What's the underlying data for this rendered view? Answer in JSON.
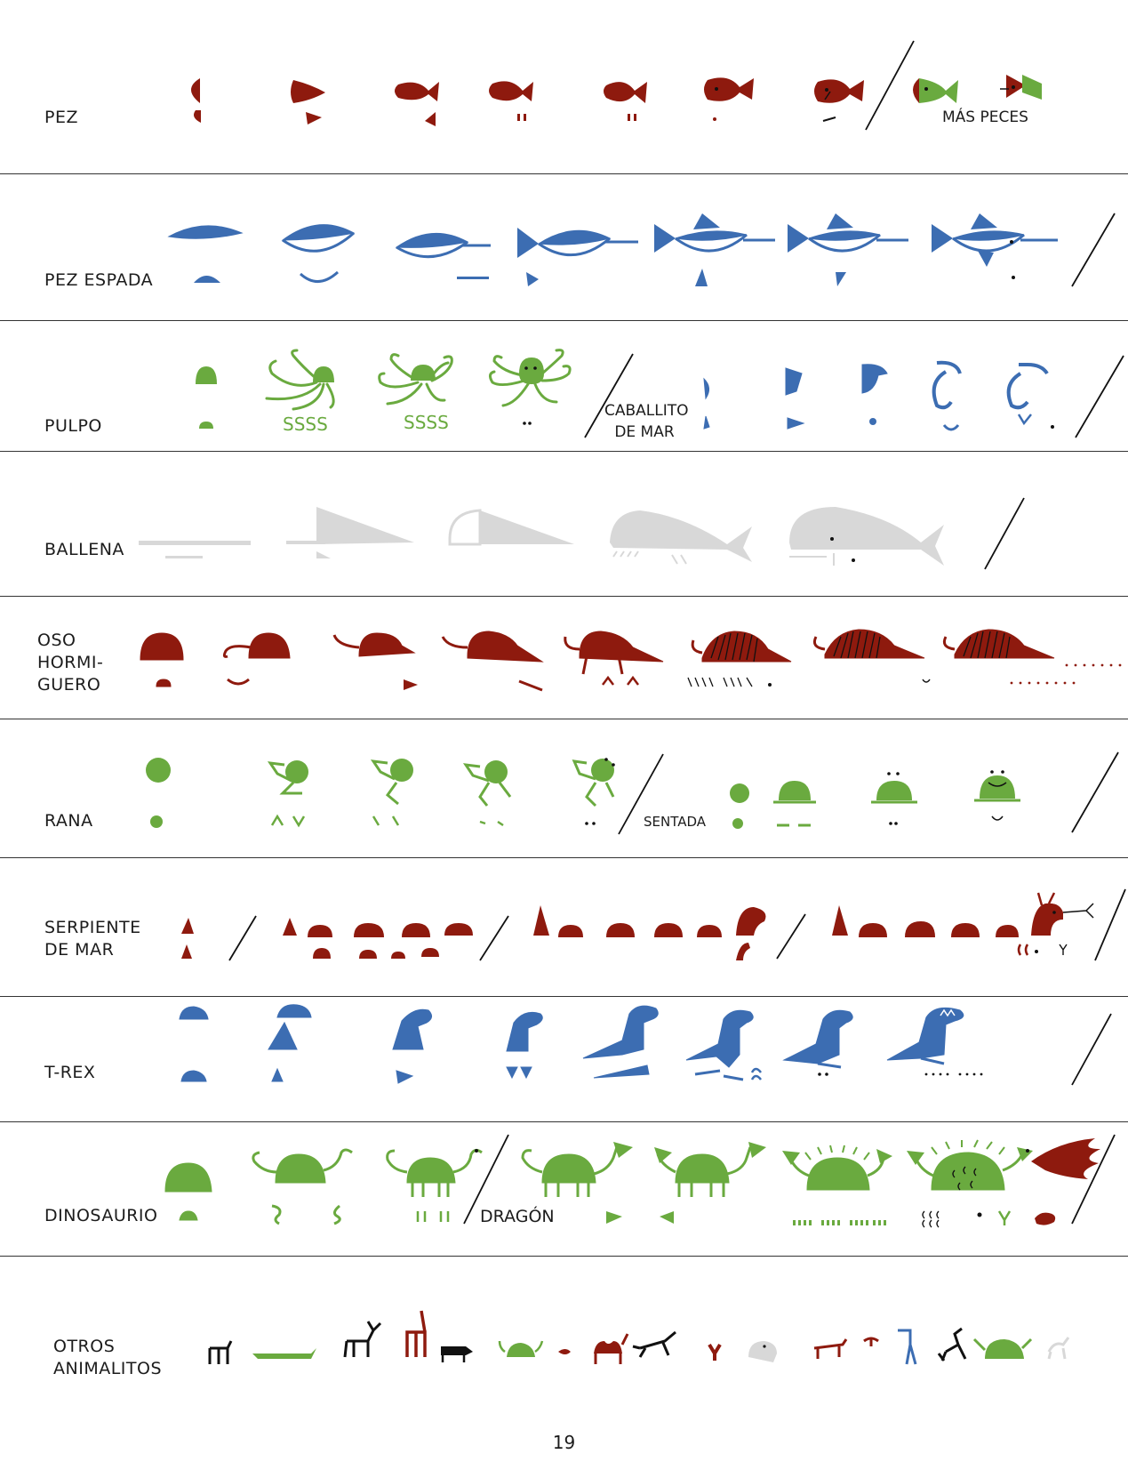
{
  "colors": {
    "red": "#8e1a0e",
    "blue": "#3c6db2",
    "green": "#6aaa3f",
    "gray": "#d8d8d8",
    "black": "#111111",
    "divider": "#333333"
  },
  "rows": {
    "pez": {
      "label": "PEZ",
      "sublabel": "MÁS PECES"
    },
    "pez_espada": {
      "label": "PEZ ESPADA"
    },
    "pulpo": {
      "label": "PULPO",
      "sublabel": "CABALLITO\nDE MAR"
    },
    "ballena": {
      "label": "BALLENA"
    },
    "oso": {
      "label": "OSO\nHORMI-\nGUERO"
    },
    "rana": {
      "label": "RANA",
      "sublabel": "SENTADA"
    },
    "serpiente": {
      "label": "SERPIENTE\nDE MAR"
    },
    "trex": {
      "label": "T-REX"
    },
    "dinosaurio": {
      "label": "DINOSAURIO",
      "sublabel": "DRAGÓN"
    },
    "otros": {
      "label": "OTROS\nANIMALITOS"
    }
  },
  "page_number": "19"
}
